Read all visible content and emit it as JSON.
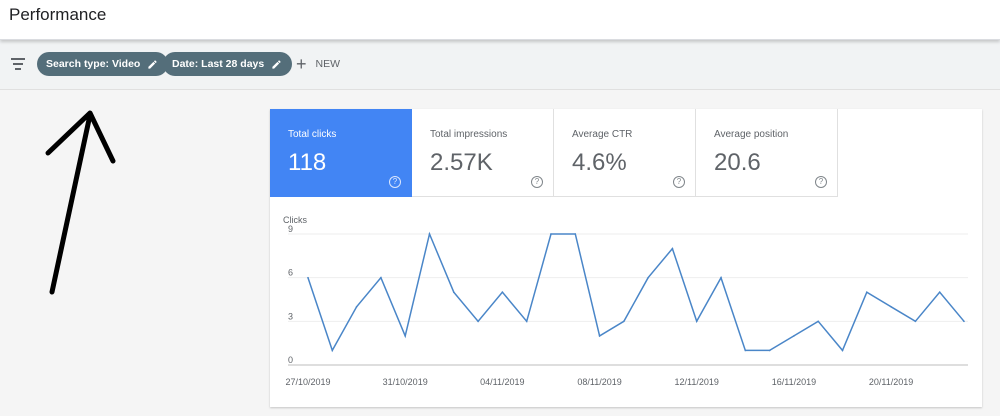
{
  "header": {
    "title": "Performance"
  },
  "filters": {
    "icon": "filter-list-icon",
    "chips": [
      {
        "label": "Search type: Video",
        "icon": "pencil-icon"
      },
      {
        "label": "Date: Last 28 days",
        "icon": "pencil-icon"
      }
    ],
    "new_button": {
      "icon": "plus-icon",
      "label": "NEW"
    }
  },
  "metrics": [
    {
      "label": "Total clicks",
      "value": "118",
      "active": true
    },
    {
      "label": "Total impressions",
      "value": "2.57K",
      "active": false
    },
    {
      "label": "Average CTR",
      "value": "4.6%",
      "active": false
    },
    {
      "label": "Average position",
      "value": "20.6",
      "active": false
    }
  ],
  "colors": {
    "accent": "#4285f4",
    "chip": "#546e7a",
    "line": "#4a86c8"
  },
  "chart_data": {
    "type": "line",
    "ylabel": "Clicks",
    "ylim": [
      0,
      9
    ],
    "yticks": [
      0,
      3,
      6,
      9
    ],
    "xtick_labels": [
      "27/10/2019",
      "31/10/2019",
      "04/11/2019",
      "08/11/2019",
      "12/11/2019",
      "16/11/2019",
      "20/11/2019"
    ],
    "x": [
      "27/10/2019",
      "28/10/2019",
      "29/10/2019",
      "30/10/2019",
      "31/10/2019",
      "01/11/2019",
      "02/11/2019",
      "03/11/2019",
      "04/11/2019",
      "05/11/2019",
      "06/11/2019",
      "07/11/2019",
      "08/11/2019",
      "09/11/2019",
      "10/11/2019",
      "11/11/2019",
      "12/11/2019",
      "13/11/2019",
      "14/11/2019",
      "15/11/2019",
      "16/11/2019",
      "17/11/2019",
      "18/11/2019",
      "19/11/2019",
      "20/11/2019",
      "21/11/2019",
      "22/11/2019",
      "23/11/2019"
    ],
    "series": [
      {
        "values": [
          6,
          1,
          4,
          6,
          2,
          9,
          5,
          3,
          5,
          3,
          9,
          9,
          2,
          3,
          6,
          8,
          3,
          6,
          1,
          1,
          2,
          3,
          1,
          5,
          4,
          3,
          5,
          3
        ]
      }
    ],
    "grid": true
  }
}
